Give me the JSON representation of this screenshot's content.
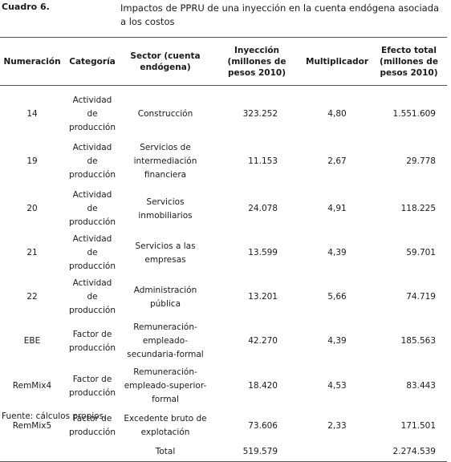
{
  "header": {
    "label": "Cuadro 6.",
    "title": "Impactos de PPRU de una inyección en la cuenta endógena asociada a los costos"
  },
  "table": {
    "columns": [
      "Numeración",
      "Categoría",
      "Sector (cuenta endógena)",
      "Inyección (millones de pesos 2010)",
      "Multiplicador",
      "Efecto total (millones de pesos 2010)"
    ],
    "rows": [
      [
        "14",
        "Actividad de producción",
        "Construcción",
        "323.252",
        "4,80",
        "1.551.609"
      ],
      [
        "19",
        "Actividad de producción",
        "Servicios de intermediación financiera",
        "11.153",
        "2,67",
        "29.778"
      ],
      [
        "20",
        "Actividad de producción",
        "Servicios inmobiliarios",
        "24.078",
        "4,91",
        "118.225"
      ],
      [
        "21",
        "Actividad de producción",
        "Servicios a las empresas",
        "13.599",
        "4,39",
        "59.701"
      ],
      [
        "22",
        "Actividad de producción",
        "Administración pública",
        "13.201",
        "5,66",
        "74.719"
      ],
      [
        "EBE",
        "Factor de producción",
        "Remuneración-empleado-secundaria-formal",
        "42.270",
        "4,39",
        "185.563"
      ],
      [
        "RemMix4",
        "Factor de producción",
        "Remuneración-empleado-superior-formal",
        "18.420",
        "4,53",
        "83.443"
      ],
      [
        "RemMix5",
        "Factor de producción",
        "Excedente bruto de explotación",
        "73.606",
        "2,33",
        "171.501"
      ]
    ],
    "total": {
      "label": "Total",
      "inyeccion": "519.579",
      "efecto": "2.274.539"
    }
  },
  "footer": {
    "source": "Fuente: cálculos propios."
  }
}
